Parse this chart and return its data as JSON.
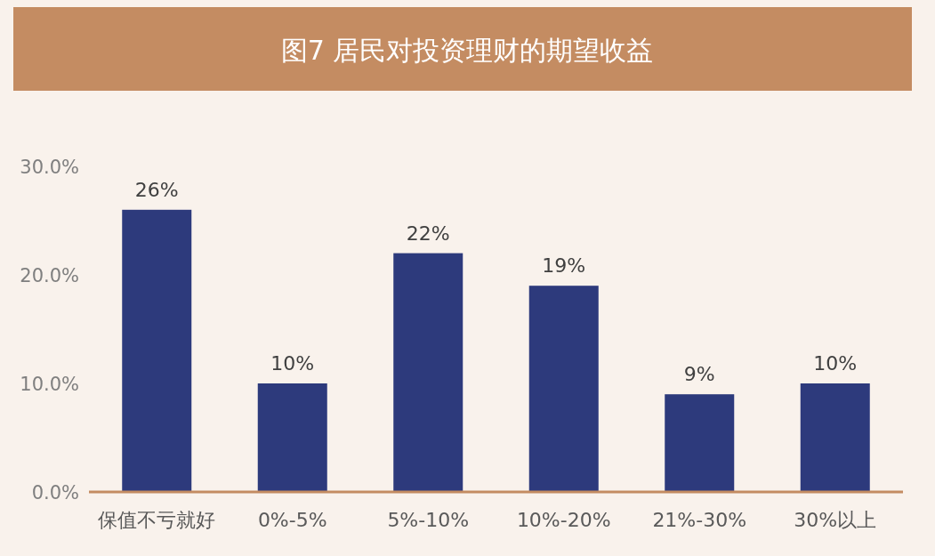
{
  "chart_data": {
    "type": "bar",
    "title": "图7  居民对投资理财的期望收益",
    "categories": [
      "保值不亏就好",
      "0%-5%",
      "5%-10%",
      "10%-20%",
      "21%-30%",
      "30%以上"
    ],
    "values": [
      26,
      10,
      22,
      19,
      9,
      10
    ],
    "value_labels": [
      "26%",
      "10%",
      "22%",
      "19%",
      "9%",
      "10%"
    ],
    "color": "#2d3a7c",
    "ylim": [
      0,
      30
    ],
    "yticks": [
      {
        "value": 0,
        "label": "0.0%"
      },
      {
        "value": 10,
        "label": "10.0%"
      },
      {
        "value": 20,
        "label": "20.0%"
      },
      {
        "value": 30,
        "label": "30.0%"
      }
    ],
    "grid": false
  }
}
